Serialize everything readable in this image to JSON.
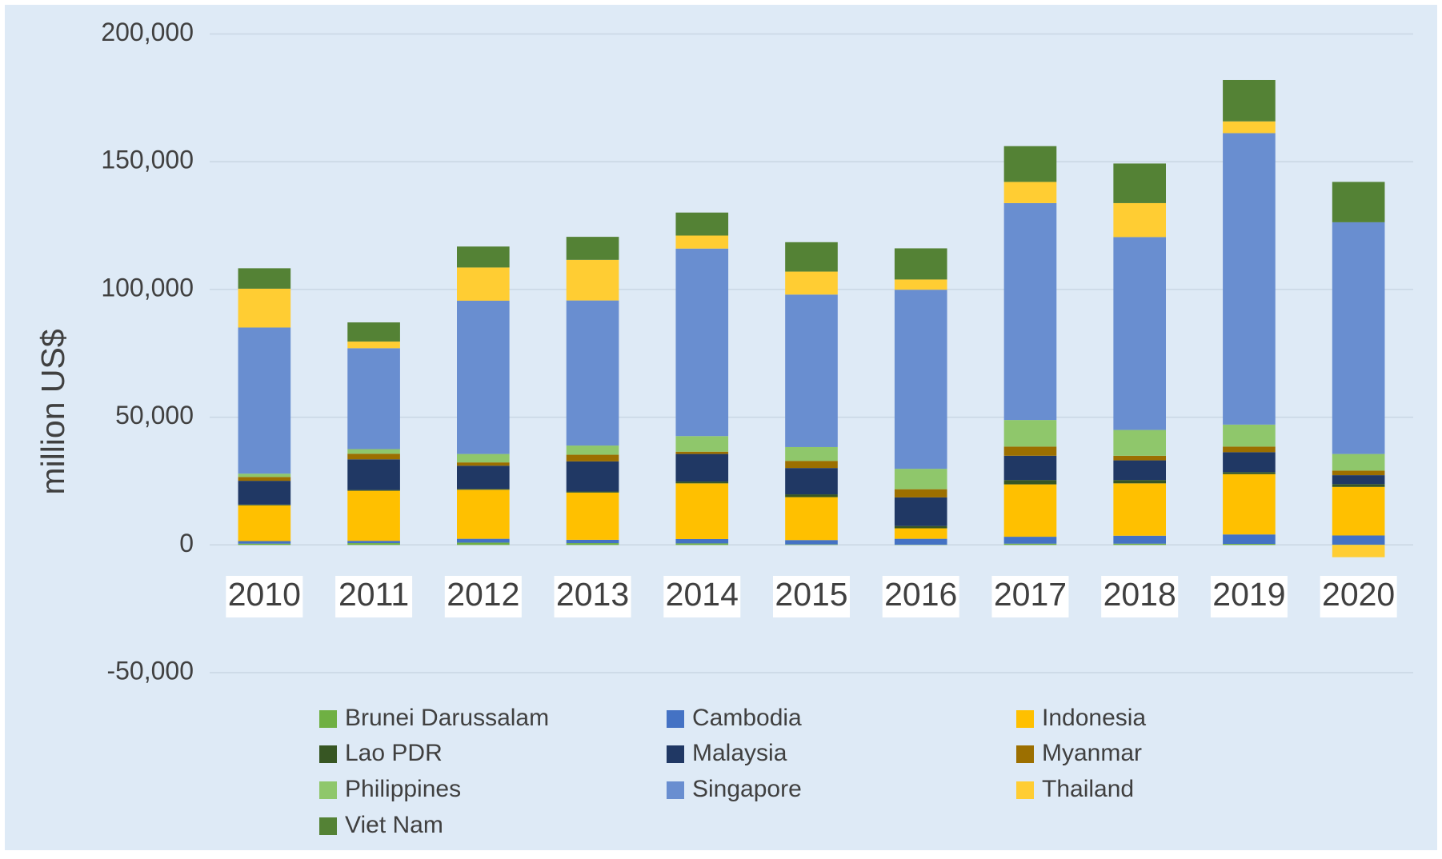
{
  "chart_data": {
    "type": "stacked_bar",
    "y_label": "million US$",
    "categories": [
      "2010",
      "2011",
      "2012",
      "2013",
      "2014",
      "2015",
      "2016",
      "2017",
      "2018",
      "2019",
      "2020"
    ],
    "series": [
      {
        "name": "Brunei Darussalam",
        "color": "#6fb043",
        "values": [
          500,
          700,
          900,
          700,
          600,
          200,
          100,
          500,
          500,
          400,
          100
        ]
      },
      {
        "name": "Cambodia",
        "color": "#4472c4",
        "values": [
          1000,
          900,
          1500,
          1300,
          1700,
          1700,
          2300,
          2700,
          3100,
          3700,
          3600
        ]
      },
      {
        "name": "Indonesia",
        "color": "#ffc000",
        "values": [
          14000,
          19600,
          19200,
          18500,
          21800,
          16800,
          4100,
          20500,
          20500,
          23600,
          19000
        ]
      },
      {
        "name": "Lao PDR",
        "color": "#375623",
        "values": [
          300,
          300,
          300,
          400,
          700,
          1100,
          900,
          1700,
          1300,
          800,
          1100
        ]
      },
      {
        "name": "Malaysia",
        "color": "#203864",
        "values": [
          9300,
          12000,
          9100,
          11800,
          10800,
          10300,
          11200,
          9500,
          7700,
          7800,
          3500
        ]
      },
      {
        "name": "Myanmar",
        "color": "#9c6f00",
        "values": [
          1500,
          2200,
          1300,
          2600,
          900,
          2800,
          3200,
          3600,
          1800,
          2200,
          1800
        ]
      },
      {
        "name": "Philippines",
        "color": "#8fc76b",
        "values": [
          1300,
          1800,
          3300,
          3600,
          6100,
          5400,
          8000,
          10400,
          10100,
          8600,
          6500
        ]
      },
      {
        "name": "Singapore",
        "color": "#698ed0",
        "values": [
          57200,
          39500,
          60000,
          56800,
          73400,
          59700,
          70100,
          84900,
          75500,
          114100,
          90700
        ]
      },
      {
        "name": "Thailand",
        "color": "#ffcd33",
        "values": [
          15200,
          2600,
          13000,
          15900,
          5100,
          9000,
          4000,
          8300,
          13300,
          4600,
          -4800
        ]
      },
      {
        "name": "Viet Nam",
        "color": "#548235",
        "values": [
          8000,
          7500,
          8200,
          9000,
          9000,
          11500,
          12200,
          14000,
          15500,
          16200,
          15800
        ]
      }
    ],
    "ylim": [
      -50000,
      200000
    ],
    "yticks": [
      {
        "value": -50000,
        "label": "-50,000"
      },
      0,
      {
        "value": 50000,
        "label": "50,000"
      },
      {
        "value": 100000,
        "label": "100,000"
      },
      {
        "value": 150000,
        "label": "150,000"
      },
      {
        "value": 200000,
        "label": "200,000"
      }
    ],
    "grid": true
  }
}
